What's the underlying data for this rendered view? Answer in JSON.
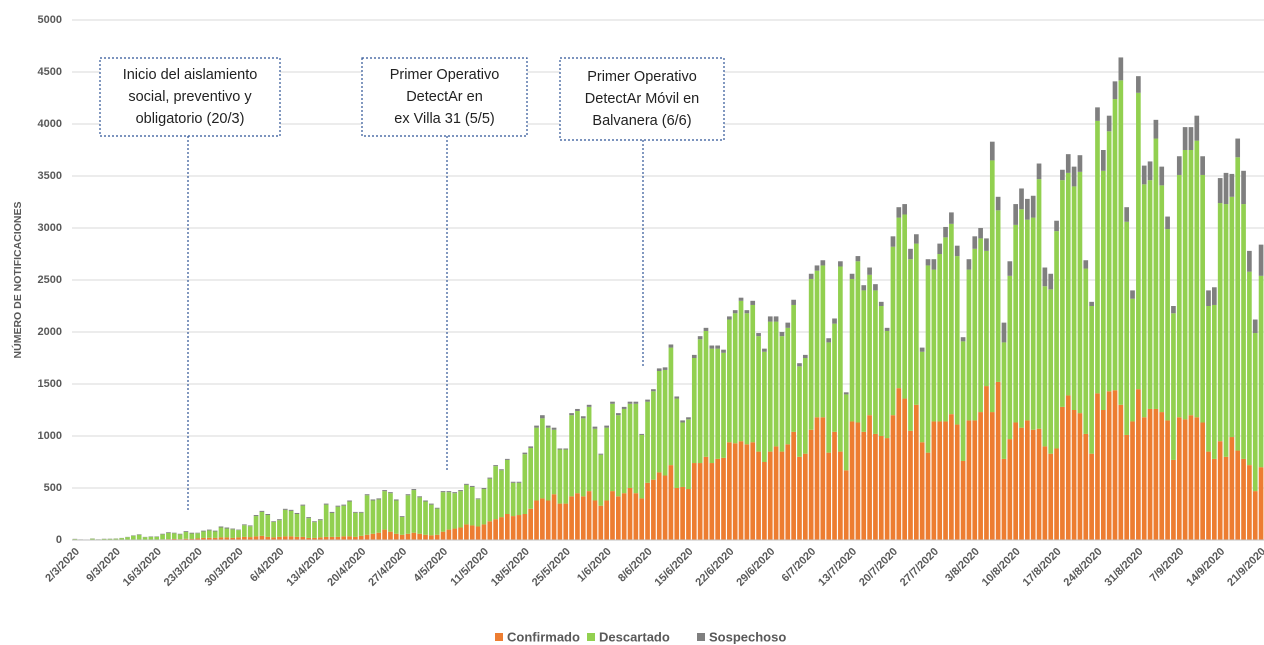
{
  "chart_data": {
    "type": "stacked_bar",
    "ylabel": "NÚMERO DE NOTIFICACIONES",
    "ylim": [
      0,
      5000
    ],
    "yticks": [
      0,
      500,
      1000,
      1500,
      2000,
      2500,
      3000,
      3500,
      4000,
      4500,
      5000
    ],
    "grid": true,
    "legend": "bottom",
    "annotations": [
      {
        "lines": [
          "Inicio del aislamiento",
          "social, preventivo y",
          "obligatorio (20/3)"
        ]
      },
      {
        "lines": [
          "Primer Operativo",
          "DetectAr en",
          "ex Villa 31 (5/5)"
        ]
      },
      {
        "lines": [
          "Primer Operativo",
          "DetectAr Móvil en",
          "Balvanera (6/6)"
        ]
      }
    ],
    "categories": [
      "2/3/2020",
      null,
      null,
      null,
      null,
      null,
      null,
      "9/3/2020",
      null,
      null,
      null,
      null,
      null,
      null,
      "16/3/2020",
      null,
      null,
      null,
      null,
      null,
      null,
      "23/3/2020",
      null,
      null,
      null,
      null,
      null,
      null,
      "30/3/2020",
      null,
      null,
      null,
      null,
      null,
      null,
      "6/4/2020",
      null,
      null,
      null,
      null,
      null,
      null,
      "13/4/2020",
      null,
      null,
      null,
      null,
      null,
      null,
      "20/4/2020",
      null,
      null,
      null,
      null,
      null,
      null,
      "27/4/2020",
      null,
      null,
      null,
      null,
      null,
      null,
      "4/5/2020",
      null,
      null,
      null,
      null,
      null,
      null,
      "11/5/2020",
      null,
      null,
      null,
      null,
      null,
      null,
      "18/5/2020",
      null,
      null,
      null,
      null,
      null,
      null,
      "25/5/2020",
      null,
      null,
      null,
      null,
      null,
      null,
      "1/6/2020",
      null,
      null,
      null,
      null,
      null,
      null,
      "8/6/2020",
      null,
      null,
      null,
      null,
      null,
      null,
      "15/6/2020",
      null,
      null,
      null,
      null,
      null,
      null,
      "22/6/2020",
      null,
      null,
      null,
      null,
      null,
      null,
      "29/6/2020",
      null,
      null,
      null,
      null,
      null,
      null,
      "6/7/2020",
      null,
      null,
      null,
      null,
      null,
      null,
      "13/7/2020",
      null,
      null,
      null,
      null,
      null,
      null,
      "20/7/2020",
      null,
      null,
      null,
      null,
      null,
      null,
      "27/7/2020",
      null,
      null,
      null,
      null,
      null,
      null,
      "3/8/2020",
      null,
      null,
      null,
      null,
      null,
      null,
      "10/8/2020",
      null,
      null,
      null,
      null,
      null,
      null,
      "17/8/2020",
      null,
      null,
      null,
      null,
      null,
      null,
      "24/8/2020",
      null,
      null,
      null,
      null,
      null,
      null,
      "31/8/2020",
      null,
      null,
      null,
      null,
      null,
      null,
      "7/9/2020",
      null,
      null,
      null,
      null,
      null,
      null,
      "14/9/2020",
      null,
      null,
      null,
      null,
      null,
      null,
      "21/9/2020"
    ],
    "series": [
      {
        "name": "Confirmado",
        "color": "#ed7d31",
        "values": [
          1,
          0,
          1,
          1,
          0,
          1,
          1,
          1,
          2,
          3,
          3,
          4,
          3,
          3,
          5,
          6,
          8,
          10,
          8,
          12,
          10,
          15,
          20,
          22,
          20,
          25,
          25,
          20,
          25,
          30,
          28,
          35,
          40,
          30,
          25,
          30,
          35,
          35,
          30,
          30,
          20,
          20,
          25,
          30,
          30,
          30,
          35,
          35,
          30,
          40,
          50,
          60,
          70,
          100,
          80,
          60,
          50,
          60,
          70,
          60,
          50,
          45,
          50,
          80,
          100,
          110,
          120,
          150,
          140,
          130,
          150,
          180,
          200,
          220,
          250,
          230,
          240,
          250,
          300,
          380,
          400,
          380,
          440,
          350,
          350,
          420,
          450,
          420,
          470,
          380,
          330,
          380,
          470,
          420,
          450,
          500,
          450,
          400,
          550,
          580,
          650,
          620,
          720,
          500,
          510,
          490,
          740,
          740,
          800,
          740,
          780,
          790,
          940,
          930,
          950,
          920,
          940,
          850,
          750,
          850,
          900,
          850,
          920,
          1040,
          800,
          830,
          1060,
          1180,
          1180,
          840,
          1040,
          850,
          670,
          1140,
          1130,
          1040,
          1200,
          1020,
          1000,
          980,
          1200,
          1460,
          1360,
          1050,
          1300,
          940,
          840,
          1140,
          1140,
          1140,
          1210,
          1110,
          760,
          1150,
          1150,
          1230,
          1480,
          1230,
          1520,
          780,
          970,
          1130,
          1080,
          1150,
          1060,
          1070,
          900,
          830,
          880,
          1280,
          1390,
          1250,
          1220,
          1020,
          830,
          1410,
          1250,
          1430,
          1440,
          1300,
          1010,
          1140,
          1450,
          1180,
          1260,
          1260,
          1230,
          1150,
          770,
          1180,
          1160,
          1200,
          1180,
          1130,
          850,
          780,
          950,
          800,
          990,
          860,
          780,
          720,
          470,
          700
        ]
      },
      {
        "name": "Descartado",
        "color": "#92d050",
        "values": [
          8,
          5,
          3,
          12,
          6,
          9,
          10,
          12,
          16,
          24,
          38,
          46,
          24,
          28,
          26,
          48,
          60,
          54,
          46,
          65,
          52,
          50,
          62,
          70,
          62,
          95,
          85,
          82,
          70,
          112,
          104,
          195,
          230,
          210,
          148,
          160,
          255,
          245,
          220,
          300,
          190,
          152,
          165,
          310,
          230,
          290,
          295,
          335,
          232,
          222,
          380,
          320,
          320,
          370,
          370,
          320,
          172,
          370,
          410,
          350,
          320,
          295,
          252,
          380,
          360,
          340,
          350,
          380,
          370,
          262,
          340,
          410,
          510,
          450,
          520,
          320,
          310,
          575,
          585,
          700,
          770,
          700,
          620,
          520,
          520,
          780,
          790,
          750,
          810,
          690,
          490,
          700,
          840,
          780,
          810,
          810,
          860,
          610,
          780,
          850,
          975,
          1015,
          1130,
          860,
          620,
          670,
          1010,
          1190,
          1210,
          1100,
          1060,
          1010,
          1180,
          1250,
          1350,
          1260,
          1320,
          1110,
          1060,
          1250,
          1200,
          1110,
          1120,
          1220,
          870,
          920,
          1450,
          1410,
          1460,
          1060,
          1040,
          1780,
          730,
          1370,
          1550,
          1360,
          1350,
          1380,
          1250,
          1030,
          1620,
          1640,
          1770,
          1650,
          1550,
          870,
          1800,
          1460,
          1610,
          1770,
          1830,
          1620,
          1150,
          1450,
          1650,
          1670,
          1300,
          2420,
          1650,
          1120,
          1570,
          1900,
          2100,
          1930,
          2040,
          2400,
          1540,
          1580,
          2090,
          2180,
          2140,
          2150,
          2320,
          1590,
          1420,
          2620,
          2300,
          2500,
          2800,
          3120,
          2050,
          1180,
          2850,
          2240,
          2200,
          2600,
          2180,
          1840,
          1410,
          2330,
          2590,
          2550,
          2660,
          2380,
          1400,
          1480,
          2290,
          2430,
          2310,
          2820,
          2450,
          1860,
          1520,
          1840
        ]
      },
      {
        "name": "Sospechoso",
        "color": "#7f7f7f",
        "values": [
          2,
          1,
          1,
          2,
          1,
          2,
          2,
          2,
          2,
          3,
          4,
          5,
          3,
          4,
          4,
          6,
          7,
          6,
          6,
          8,
          8,
          5,
          8,
          8,
          8,
          10,
          10,
          8,
          5,
          8,
          8,
          10,
          10,
          10,
          7,
          10,
          10,
          10,
          10,
          10,
          10,
          8,
          10,
          10,
          10,
          10,
          10,
          10,
          8,
          8,
          10,
          10,
          10,
          10,
          10,
          10,
          8,
          10,
          10,
          10,
          10,
          10,
          8,
          10,
          10,
          10,
          10,
          10,
          10,
          8,
          10,
          10,
          10,
          10,
          10,
          10,
          10,
          15,
          15,
          20,
          30,
          20,
          20,
          10,
          10,
          20,
          20,
          20,
          20,
          20,
          10,
          20,
          20,
          20,
          20,
          20,
          20,
          10,
          20,
          20,
          25,
          25,
          30,
          20,
          20,
          20,
          30,
          30,
          30,
          30,
          30,
          30,
          30,
          30,
          30,
          30,
          40,
          30,
          30,
          50,
          50,
          40,
          50,
          50,
          30,
          30,
          50,
          50,
          50,
          40,
          50,
          50,
          20,
          50,
          50,
          50,
          70,
          60,
          40,
          30,
          100,
          100,
          100,
          100,
          90,
          40,
          60,
          100,
          100,
          100,
          110,
          100,
          40,
          100,
          120,
          100,
          120,
          180,
          130,
          190,
          140,
          200,
          200,
          200,
          210,
          150,
          180,
          150,
          100,
          100,
          180,
          190,
          160,
          80,
          40,
          130,
          200,
          150,
          170,
          220,
          140,
          80,
          160,
          180,
          180,
          180,
          180,
          120,
          70,
          180,
          220,
          220,
          240,
          180,
          150,
          170,
          240,
          300,
          220,
          180,
          320,
          200,
          130,
          300
        ]
      }
    ]
  }
}
